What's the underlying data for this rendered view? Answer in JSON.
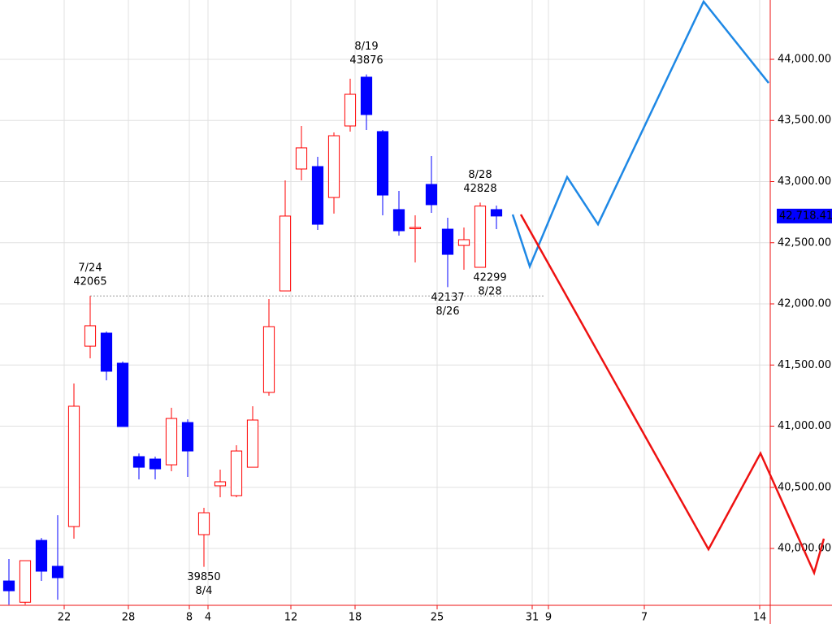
{
  "chart_data": {
    "type": "candlestick",
    "up_color": "#ff0000",
    "down_color": "#0000ff",
    "open": [
      39734,
      39560,
      40066,
      39854,
      40179,
      41654,
      41761,
      41515,
      40751,
      40731,
      40684,
      41030,
      40113,
      40512,
      40432,
      40664,
      41276,
      42106,
      43103,
      43123,
      42870,
      43455,
      43854,
      43409,
      42771,
      42618,
      42977,
      42611,
      42478,
      42299,
      42771
    ],
    "high": [
      39914,
      39900,
      40086,
      40272,
      41349,
      42065,
      41774,
      41528,
      40777,
      40751,
      41150,
      41056,
      40332,
      40645,
      40844,
      41163,
      42040,
      43010,
      43455,
      43203,
      43402,
      43841,
      43876,
      43422,
      42924,
      42724,
      43209,
      42704,
      42625,
      42828,
      42804
    ],
    "low": [
      39540,
      39540,
      39734,
      39581,
      40080,
      41555,
      41375,
      40997,
      40565,
      40565,
      40631,
      40585,
      39850,
      40419,
      40419,
      40664,
      41249,
      42106,
      43010,
      42605,
      42738,
      43409,
      43422,
      42724,
      42558,
      42339,
      42744,
      42137,
      42279,
      42299,
      42611
    ],
    "close": [
      39654,
      39900,
      39814,
      39761,
      41163,
      41821,
      41449,
      40997,
      40664,
      40651,
      41063,
      40797,
      40292,
      40545,
      40797,
      41050,
      41814,
      42718,
      43276,
      42651,
      43375,
      43714,
      43548,
      42890,
      42598,
      42625,
      42811,
      42405,
      42525,
      42800,
      42718.41
    ],
    "forecasts": [
      {
        "color": "#1e88e5",
        "x": [
          31,
          32.05,
          34.35,
          36.25,
          42.75,
          46.75
        ],
        "values": [
          42731,
          42306,
          43037,
          42651,
          44472,
          43807
        ]
      },
      {
        "color": "#ee1111",
        "x": [
          31.5,
          43.05,
          46.25,
          49.55,
          50.15
        ],
        "values": [
          42731,
          39993,
          40778,
          39801,
          40080
        ]
      }
    ],
    "annotations": [
      {
        "x": 5,
        "y": 42065,
        "position": "above",
        "lines": [
          "7/24",
          "42065"
        ]
      },
      {
        "x": 22,
        "y": 43876,
        "position": "above",
        "lines": [
          "8/19",
          "43876"
        ]
      },
      {
        "x": 29,
        "y": 42828,
        "position": "above",
        "lines": [
          "8/28",
          "42828"
        ]
      },
      {
        "x": 12,
        "y": 39850,
        "position": "below",
        "lines": [
          "39850",
          "8/4"
        ]
      },
      {
        "x": 27,
        "y": 42137,
        "position": "below",
        "lines": [
          "42137",
          "8/26"
        ]
      },
      {
        "x": 29.6,
        "y": 42299,
        "position": "below",
        "lines": [
          "42299",
          "8/28"
        ]
      }
    ],
    "reference_line": {
      "value": 42065,
      "from": 5,
      "to": 32.95
    },
    "current_price": {
      "value": 42718.41,
      "label": "42,718.41",
      "color": "#0000ff"
    },
    "xlim": [
      -0.55,
      46.85
    ],
    "ylim": [
      39535,
      44485
    ],
    "xticks": [
      {
        "value": 3.4,
        "label": "22"
      },
      {
        "value": 7.35,
        "label": "28"
      },
      {
        "value": 11.1,
        "label": "8"
      },
      {
        "value": 12.25,
        "label": "4"
      },
      {
        "value": 17.35,
        "label": "12"
      },
      {
        "value": 21.3,
        "label": "18"
      },
      {
        "value": 26.35,
        "label": "25"
      },
      {
        "value": 32.2,
        "label": "31"
      },
      {
        "value": 33.2,
        "label": "9"
      },
      {
        "value": 39.1,
        "label": "7"
      },
      {
        "value": 46.2,
        "label": "14"
      }
    ],
    "yticks": [
      {
        "value": 40000,
        "label": "40,000.00"
      },
      {
        "value": 40500,
        "label": "40,500.00"
      },
      {
        "value": 41000,
        "label": "41,000.00"
      },
      {
        "value": 41500,
        "label": "41,500.00"
      },
      {
        "value": 42000,
        "label": "42,000.00"
      },
      {
        "value": 42500,
        "label": "42,500.00"
      },
      {
        "value": 43000,
        "label": "43,000.00"
      },
      {
        "value": 43500,
        "label": "43,500.00"
      },
      {
        "value": 44000,
        "label": "44,000.00"
      }
    ],
    "grid": true
  }
}
